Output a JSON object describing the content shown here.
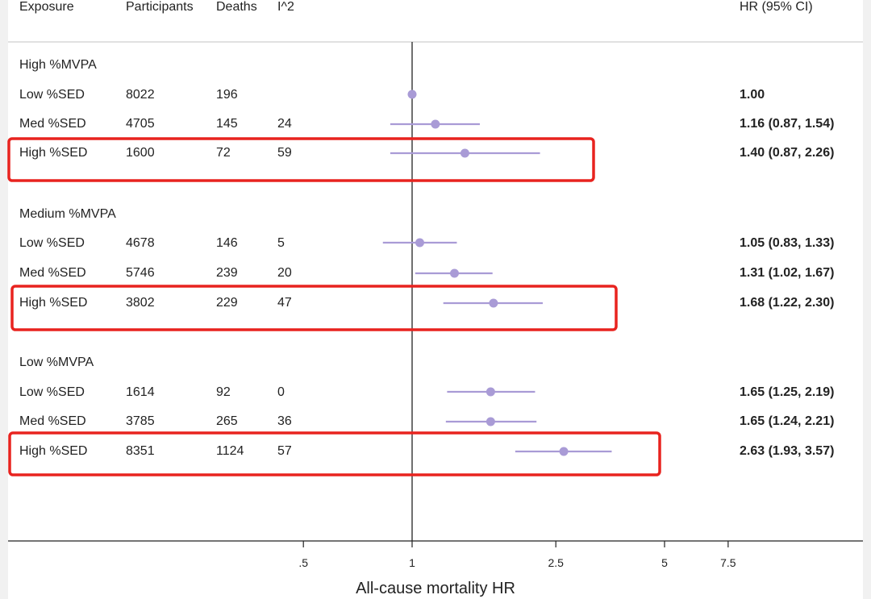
{
  "columns": {
    "exposure": "Exposure",
    "participants": "Participants",
    "deaths": "Deaths",
    "i2": "I^2",
    "hr": "HR (95% CI)"
  },
  "groups": [
    {
      "label": "High %MVPA",
      "rows": [
        {
          "exposure": "Low %SED",
          "participants": "8022",
          "deaths": "196",
          "i2": "",
          "hr_text": "1.00"
        },
        {
          "exposure": "Med %SED",
          "participants": "4705",
          "deaths": "145",
          "i2": "24",
          "hr_text": "1.16 (0.87, 1.54)"
        },
        {
          "exposure": "High %SED",
          "participants": "1600",
          "deaths": "72",
          "i2": "59",
          "hr_text": "1.40 (0.87, 2.26)"
        }
      ]
    },
    {
      "label": "Medium %MVPA",
      "rows": [
        {
          "exposure": "Low %SED",
          "participants": "4678",
          "deaths": "146",
          "i2": "5",
          "hr_text": "1.05 (0.83, 1.33)"
        },
        {
          "exposure": "Med %SED",
          "participants": "5746",
          "deaths": "239",
          "i2": "20",
          "hr_text": "1.31 (1.02, 1.67)"
        },
        {
          "exposure": "High %SED",
          "participants": "3802",
          "deaths": "229",
          "i2": "47",
          "hr_text": "1.68 (1.22, 2.30)"
        }
      ]
    },
    {
      "label": "Low %MVPA",
      "rows": [
        {
          "exposure": "Low %SED",
          "participants": "1614",
          "deaths": "92",
          "i2": "0",
          "hr_text": "1.65 (1.25, 2.19)"
        },
        {
          "exposure": "Med %SED",
          "participants": "3785",
          "deaths": "265",
          "i2": "36",
          "hr_text": "1.65 (1.24, 2.21)"
        },
        {
          "exposure": "High %SED",
          "participants": "8351",
          "deaths": "1124",
          "i2": "57",
          "hr_text": "2.63 (1.93, 3.57)"
        }
      ]
    }
  ],
  "chart_data": {
    "type": "scatter",
    "xlabel": "All-cause mortality HR",
    "x_scale": "log",
    "x_ticks": [
      0.5,
      1,
      2.5,
      5,
      7.5
    ],
    "x_tick_labels": [
      ".5",
      "1",
      "2.5",
      "5",
      "7.5"
    ],
    "reference_line": 1,
    "point_color": "#a99bd6",
    "highlight_color": "#e8231f",
    "highlighted_rows": [
      "High %MVPA / High %SED",
      "Medium %MVPA / High %SED",
      "Low %MVPA / High %SED"
    ],
    "points": [
      {
        "group": "High %MVPA",
        "label": "Low %SED",
        "hr": 1.0,
        "lo": null,
        "hi": null
      },
      {
        "group": "High %MVPA",
        "label": "Med %SED",
        "hr": 1.16,
        "lo": 0.87,
        "hi": 1.54
      },
      {
        "group": "High %MVPA",
        "label": "High %SED",
        "hr": 1.4,
        "lo": 0.87,
        "hi": 2.26
      },
      {
        "group": "Medium %MVPA",
        "label": "Low %SED",
        "hr": 1.05,
        "lo": 0.83,
        "hi": 1.33
      },
      {
        "group": "Medium %MVPA",
        "label": "Med %SED",
        "hr": 1.31,
        "lo": 1.02,
        "hi": 1.67
      },
      {
        "group": "Medium %MVPA",
        "label": "High %SED",
        "hr": 1.68,
        "lo": 1.22,
        "hi": 2.3
      },
      {
        "group": "Low %MVPA",
        "label": "Low %SED",
        "hr": 1.65,
        "lo": 1.25,
        "hi": 2.19
      },
      {
        "group": "Low %MVPA",
        "label": "Med %SED",
        "hr": 1.65,
        "lo": 1.24,
        "hi": 2.21
      },
      {
        "group": "Low %MVPA",
        "label": "High %SED",
        "hr": 2.63,
        "lo": 1.93,
        "hi": 3.57
      }
    ]
  }
}
